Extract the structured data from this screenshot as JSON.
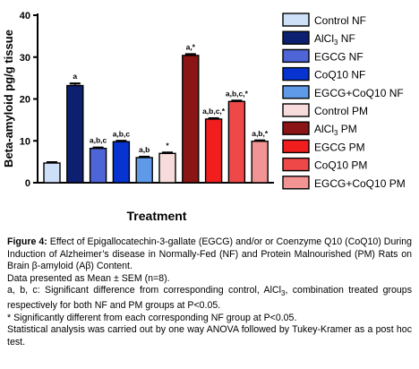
{
  "chart_data": {
    "type": "bar",
    "ylabel": "Beta-amyloid pg/g tissue",
    "xlabel": "Treatment",
    "ylim": [
      0,
      40
    ],
    "yticks": [
      0,
      10,
      20,
      30,
      40
    ],
    "grid": false,
    "legend_position": "right",
    "categories": [
      "Control NF",
      "AlCl3 NF",
      "EGCG NF",
      "CoQ10 NF",
      "EGCG+CoQ10 NF",
      "Control PM",
      "AlCl3 PM",
      "EGCG PM",
      "CoQ10 PM",
      "EGCG+CoQ10 PM"
    ],
    "series": [
      {
        "name": "Control NF",
        "value": 4.7,
        "error": 0.2,
        "color": "#cde0f7",
        "label": ""
      },
      {
        "name": "AlCl3 NF",
        "value": 23.2,
        "error": 0.5,
        "color": "#0d1f70",
        "label": "a"
      },
      {
        "name": "EGCG NF",
        "value": 8.2,
        "error": 0.2,
        "color": "#4d65d6",
        "label": "a,b,c"
      },
      {
        "name": "CoQ10 NF",
        "value": 9.8,
        "error": 0.2,
        "color": "#0733d1",
        "label": "a,b,c"
      },
      {
        "name": "EGCG+CoQ10 NF",
        "value": 6.0,
        "error": 0.2,
        "color": "#5e9ae8",
        "label": "a,b"
      },
      {
        "name": "Control PM",
        "value": 7.0,
        "error": 0.2,
        "color": "#f8dcdc",
        "label": "*"
      },
      {
        "name": "AlCl3 PM",
        "value": 30.4,
        "error": 0.3,
        "color": "#8b1414",
        "label": "a,*"
      },
      {
        "name": "EGCG PM",
        "value": 15.2,
        "error": 0.2,
        "color": "#f21d1d",
        "label": "a,b,c,*"
      },
      {
        "name": "CoQ10 PM",
        "value": 19.4,
        "error": 0.2,
        "color": "#ee4848",
        "label": "a,b,c,*"
      },
      {
        "name": "EGCG+CoQ10 PM",
        "value": 9.9,
        "error": 0.2,
        "color": "#f29494",
        "label": "a,b,*"
      }
    ]
  },
  "legend": [
    {
      "pre": "Control  NF",
      "sub": "",
      "post": ""
    },
    {
      "pre": "AlCl",
      "sub": "3",
      "post": " NF"
    },
    {
      "pre": "EGCG NF",
      "sub": "",
      "post": ""
    },
    {
      "pre": "CoQ10 NF",
      "sub": "",
      "post": ""
    },
    {
      "pre": "EGCG+CoQ10 NF",
      "sub": "",
      "post": ""
    },
    {
      "pre": "Control PM",
      "sub": "",
      "post": ""
    },
    {
      "pre": "AlCl",
      "sub": "3",
      "post": " PM"
    },
    {
      "pre": "EGCG PM",
      "sub": "",
      "post": ""
    },
    {
      "pre": "CoQ10 PM",
      "sub": "",
      "post": ""
    },
    {
      "pre": "EGCG+CoQ10 PM",
      "sub": "",
      "post": ""
    }
  ],
  "caption": {
    "figure_label": "Figure 4:",
    "line1": " Effect of Epigallocatechin-3-gallate (EGCG) and/or or Coenzyme Q10 (CoQ10) During Induction of Alzheimer’s disease in Normally-Fed (NF) and Protein Malnourished (PM) Rats on Brain β-amyloid (Aβ) Content.",
    "line2": "Data presented as Mean ± SEM (n=8).",
    "line3_pre": "a, b, c: Significant difference from corresponding control, AlCl",
    "line3_sub": "3",
    "line3_post": ", combination treated groups respectively for both NF and PM groups at P<0.05.",
    "line4": "* Significantly different from each corresponding NF group at P<0.05.",
    "line5": "Statistical analysis was carried out by one way ANOVA followed by Tukey-Kramer as a post hoc test."
  }
}
